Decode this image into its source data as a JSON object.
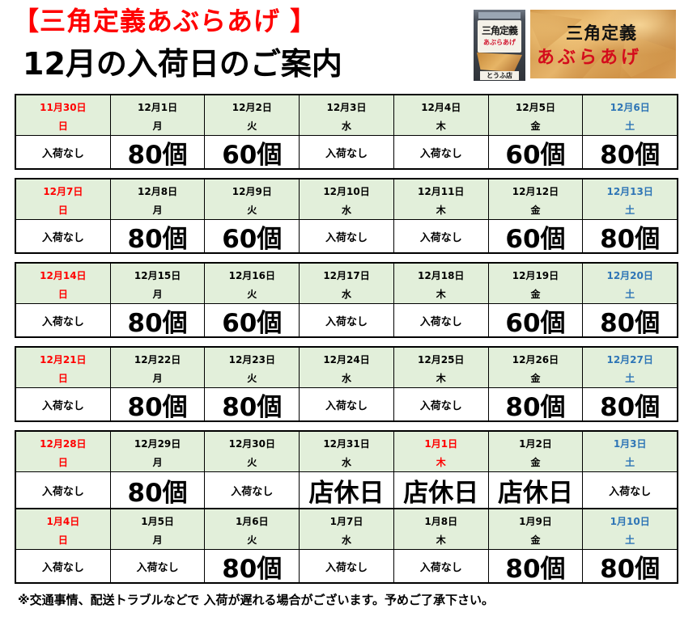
{
  "header": {
    "product_title": "【三角定義あぶらあげ 】",
    "subtitle": "12月の入荷日のご案内"
  },
  "photos": {
    "package": {
      "lettering": [
        "三角定義",
        "あぶらあげ",
        "とうふ店"
      ]
    },
    "fried_tofu": {
      "lettering": [
        "三角定義",
        "あぶらあげ"
      ]
    }
  },
  "colors": {
    "title": "#FF0000",
    "header_row_bg": "#E2EFDA"
  },
  "calendar": {
    "weeks": [
      {
        "days": [
          {
            "date": "11月30日",
            "weekday": "日",
            "value": "入荷なし",
            "color": "#FF0000"
          },
          {
            "date": "12月1日",
            "weekday": "月",
            "value": "80個"
          },
          {
            "date": "12月2日",
            "weekday": "火",
            "value": "60個"
          },
          {
            "date": "12月3日",
            "weekday": "水",
            "value": "入荷なし"
          },
          {
            "date": "12月4日",
            "weekday": "木",
            "value": "入荷なし"
          },
          {
            "date": "12月5日",
            "weekday": "金",
            "value": "60個"
          },
          {
            "date": "12月6日",
            "weekday": "土",
            "value": "80個",
            "color": "#2E75B6"
          }
        ]
      },
      {
        "days": [
          {
            "date": "12月7日",
            "weekday": "日",
            "value": "入荷なし",
            "color": "#FF0000"
          },
          {
            "date": "12月8日",
            "weekday": "月",
            "value": "80個"
          },
          {
            "date": "12月9日",
            "weekday": "火",
            "value": "60個"
          },
          {
            "date": "12月10日",
            "weekday": "水",
            "value": "入荷なし"
          },
          {
            "date": "12月11日",
            "weekday": "木",
            "value": "入荷なし"
          },
          {
            "date": "12月12日",
            "weekday": "金",
            "value": "60個"
          },
          {
            "date": "12月13日",
            "weekday": "土",
            "value": "80個",
            "color": "#2E75B6"
          }
        ]
      },
      {
        "days": [
          {
            "date": "12月14日",
            "weekday": "日",
            "value": "入荷なし",
            "color": "#FF0000"
          },
          {
            "date": "12月15日",
            "weekday": "月",
            "value": "80個"
          },
          {
            "date": "12月16日",
            "weekday": "火",
            "value": "60個"
          },
          {
            "date": "12月17日",
            "weekday": "水",
            "value": "入荷なし"
          },
          {
            "date": "12月18日",
            "weekday": "木",
            "value": "入荷なし"
          },
          {
            "date": "12月19日",
            "weekday": "金",
            "value": "60個"
          },
          {
            "date": "12月20日",
            "weekday": "土",
            "value": "80個",
            "color": "#2E75B6"
          }
        ]
      },
      {
        "days": [
          {
            "date": "12月21日",
            "weekday": "日",
            "value": "入荷なし",
            "color": "#FF0000"
          },
          {
            "date": "12月22日",
            "weekday": "月",
            "value": "80個"
          },
          {
            "date": "12月23日",
            "weekday": "火",
            "value": "80個"
          },
          {
            "date": "12月24日",
            "weekday": "水",
            "value": "入荷なし"
          },
          {
            "date": "12月25日",
            "weekday": "木",
            "value": "入荷なし"
          },
          {
            "date": "12月26日",
            "weekday": "金",
            "value": "80個"
          },
          {
            "date": "12月27日",
            "weekday": "土",
            "value": "80個",
            "color": "#2E75B6"
          }
        ]
      },
      {
        "days": [
          {
            "date": "12月28日",
            "weekday": "日",
            "value": "入荷なし",
            "color": "#FF0000"
          },
          {
            "date": "12月29日",
            "weekday": "月",
            "value": "80個"
          },
          {
            "date": "12月30日",
            "weekday": "火",
            "value": "入荷なし"
          },
          {
            "date": "12月31日",
            "weekday": "水",
            "value": "店休日"
          },
          {
            "date": "1月1日",
            "weekday": "木",
            "value": "店休日",
            "color": "#FF0000"
          },
          {
            "date": "1月2日",
            "weekday": "金",
            "value": "店休日"
          },
          {
            "date": "1月3日",
            "weekday": "土",
            "value": "入荷なし",
            "color": "#2E75B6"
          }
        ]
      },
      {
        "days": [
          {
            "date": "1月4日",
            "weekday": "日",
            "value": "入荷なし",
            "color": "#FF0000"
          },
          {
            "date": "1月5日",
            "weekday": "月",
            "value": "入荷なし"
          },
          {
            "date": "1月6日",
            "weekday": "火",
            "value": "80個"
          },
          {
            "date": "1月7日",
            "weekday": "水",
            "value": "入荷なし"
          },
          {
            "date": "1月8日",
            "weekday": "木",
            "value": "入荷なし"
          },
          {
            "date": "1月9日",
            "weekday": "金",
            "value": "80個"
          },
          {
            "date": "1月10日",
            "weekday": "土",
            "value": "80個",
            "color": "#2E75B6"
          }
        ]
      }
    ]
  },
  "footnote": "※交通事情、配送トラブルなどで 入荷が遅れる場合がございます。予めご了承下さい。"
}
